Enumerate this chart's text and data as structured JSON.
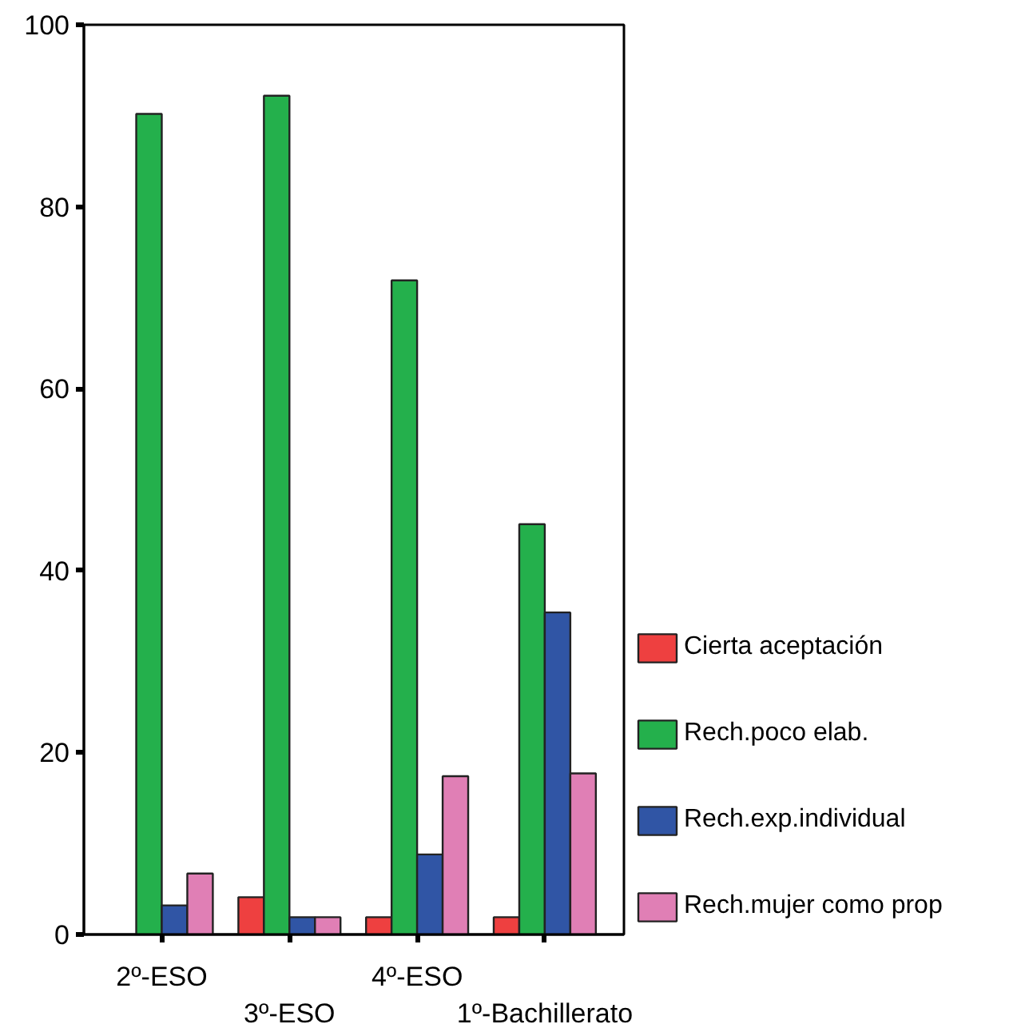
{
  "chart_data": {
    "type": "bar",
    "categories": [
      "2º-ESO",
      "3º-ESO",
      "4º-ESO",
      "1º-Bachillerato"
    ],
    "series": [
      {
        "name": "Cierta aceptación",
        "color": "#ee4040",
        "values": [
          null,
          4.1,
          1.9,
          1.9
        ]
      },
      {
        "name": "Rech.poco elab.",
        "color": "#24b04c",
        "values": [
          90.2,
          92.2,
          71.9,
          45.1
        ]
      },
      {
        "name": "Rech.exp.individual",
        "color": "#3055a5",
        "values": [
          3.2,
          1.9,
          8.8,
          35.4
        ]
      },
      {
        "name": "Rech.mujer como prop",
        "color": "#e07fb5",
        "values": [
          6.7,
          1.9,
          17.4,
          17.7
        ]
      }
    ],
    "ylim": [
      0,
      100
    ],
    "yticks": [
      0,
      20,
      40,
      60,
      80,
      100
    ],
    "grid": false,
    "legend": "right"
  }
}
